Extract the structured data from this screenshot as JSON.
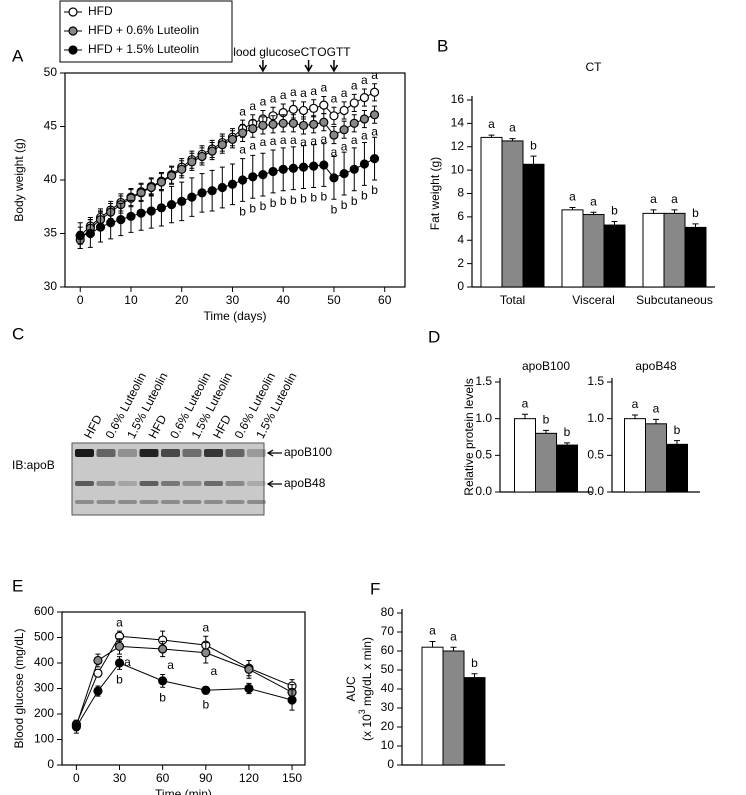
{
  "chart_data": [
    {
      "type": "line",
      "panel": "A",
      "ylabel": "Body weight (g)",
      "xlabel": "Time (days)",
      "xlim": [
        -3,
        64
      ],
      "xticks": [
        0,
        10,
        20,
        30,
        40,
        50,
        60
      ],
      "ylim": [
        30,
        50
      ],
      "yticks": [
        30,
        35,
        40,
        45,
        50
      ],
      "legend": "upper left",
      "events": [
        {
          "x": 36,
          "label": "Blood glucose"
        },
        {
          "x": 45,
          "label": "CT"
        },
        {
          "x": 50,
          "label": "OGTT"
        }
      ],
      "x": [
        0,
        2,
        4,
        6,
        8,
        10,
        12,
        14,
        16,
        18,
        20,
        22,
        24,
        26,
        28,
        30,
        32,
        34,
        36,
        38,
        40,
        42,
        44,
        46,
        48,
        50,
        52,
        54,
        56,
        58
      ],
      "series": [
        {
          "name": "HFD",
          "color": "#ffffff",
          "values": [
            34.8,
            35.7,
            36.5,
            37.2,
            37.9,
            38.4,
            38.9,
            39.4,
            39.9,
            40.5,
            41.2,
            41.9,
            42.4,
            42.9,
            43.5,
            44.0,
            44.8,
            45.3,
            45.7,
            46.0,
            46.3,
            46.6,
            46.5,
            46.7,
            47.0,
            46.0,
            46.5,
            47.2,
            47.7,
            48.2
          ],
          "errors": [
            0.8,
            0.8,
            0.8,
            0.8,
            0.8,
            0.8,
            0.8,
            0.8,
            0.8,
            0.8,
            0.8,
            0.8,
            0.8,
            0.8,
            0.8,
            0.8,
            0.8,
            0.8,
            0.8,
            0.8,
            0.8,
            0.8,
            0.8,
            0.8,
            0.8,
            0.8,
            0.8,
            0.8,
            0.8,
            0.8
          ],
          "letters": [
            null,
            null,
            null,
            null,
            null,
            null,
            null,
            null,
            null,
            null,
            null,
            null,
            null,
            null,
            null,
            null,
            "a",
            "a",
            "a",
            "a",
            "a",
            "a",
            "a",
            "a",
            "a",
            "a",
            "a",
            "a",
            "a",
            "a"
          ]
        },
        {
          "name": "HFD + 0.6% Luteolin",
          "color": "#888888",
          "values": [
            34.4,
            35.5,
            36.3,
            37.0,
            37.7,
            38.3,
            38.8,
            39.3,
            39.8,
            40.4,
            41.0,
            41.7,
            42.2,
            42.7,
            43.3,
            43.8,
            44.4,
            44.8,
            45.1,
            45.2,
            45.3,
            45.3,
            45.1,
            45.2,
            45.4,
            44.2,
            44.7,
            45.3,
            45.7,
            46.1
          ],
          "errors": [
            0.8,
            0.8,
            0.8,
            0.8,
            0.8,
            0.8,
            0.8,
            0.8,
            0.8,
            0.8,
            0.8,
            0.8,
            0.8,
            0.8,
            0.8,
            0.8,
            0.8,
            0.8,
            0.8,
            0.8,
            0.8,
            0.8,
            0.8,
            0.8,
            0.8,
            0.8,
            0.8,
            0.8,
            0.8,
            0.8
          ],
          "letters": [
            null,
            null,
            null,
            null,
            null,
            null,
            null,
            null,
            null,
            null,
            null,
            null,
            null,
            null,
            null,
            null,
            "a",
            "a",
            "a",
            "a",
            "a",
            "a",
            "a",
            "a",
            "a",
            "a",
            "a",
            "a",
            "a",
            "a"
          ]
        },
        {
          "name": "HFD + 1.5% Luteolin",
          "color": "#000000",
          "values": [
            34.8,
            35.0,
            35.6,
            36.0,
            36.3,
            36.6,
            36.9,
            37.1,
            37.4,
            37.7,
            38.0,
            38.4,
            38.8,
            39.0,
            39.3,
            39.6,
            40.0,
            40.3,
            40.5,
            40.8,
            41.0,
            41.1,
            41.2,
            41.3,
            41.4,
            40.2,
            40.6,
            41.0,
            41.5,
            42.0
          ],
          "errors": [
            1.2,
            1.3,
            1.4,
            1.5,
            1.5,
            1.5,
            1.6,
            1.6,
            1.7,
            1.7,
            1.8,
            1.8,
            1.8,
            1.9,
            1.9,
            1.9,
            2.0,
            2.0,
            2.0,
            2.0,
            2.0,
            2.0,
            2.0,
            2.0,
            2.0,
            2.0,
            2.0,
            2.0,
            2.0,
            2.0
          ],
          "letters": [
            null,
            null,
            null,
            null,
            null,
            null,
            null,
            null,
            null,
            null,
            null,
            null,
            null,
            null,
            null,
            null,
            "b",
            "b",
            "b",
            "b",
            "b",
            "b",
            "b",
            "b",
            "b",
            "b",
            "b",
            "b",
            "b",
            "b"
          ]
        }
      ]
    },
    {
      "type": "bar",
      "panel": "B",
      "title": "CT",
      "ylabel": "Fat weight (g)",
      "categories": [
        "Total",
        "Visceral",
        "Subcutaneous"
      ],
      "ylim": [
        0,
        16
      ],
      "yticks": [
        0,
        2,
        4,
        6,
        8,
        10,
        12,
        14,
        16
      ],
      "series": [
        {
          "color": "#ffffff",
          "values": [
            12.8,
            6.6,
            6.3
          ],
          "errors": [
            0.2,
            0.2,
            0.3
          ],
          "letters": [
            "a",
            "a",
            "a"
          ]
        },
        {
          "color": "#888888",
          "values": [
            12.5,
            6.2,
            6.3
          ],
          "errors": [
            0.2,
            0.2,
            0.3
          ],
          "letters": [
            "a",
            "a",
            "a"
          ]
        },
        {
          "color": "#000000",
          "values": [
            10.5,
            5.3,
            5.1
          ],
          "errors": [
            0.7,
            0.3,
            0.3
          ],
          "letters": [
            "b",
            "b",
            "b"
          ]
        }
      ]
    },
    {
      "type": "bar",
      "panel": "D",
      "title": "apoB100",
      "ylabel": "Relative protein levels",
      "ylim": [
        0,
        1.5
      ],
      "yticks": [
        {
          "value": 0,
          "label": "0.0"
        },
        {
          "value": 0.5,
          "label": "0.5"
        },
        {
          "value": 1,
          "label": "1.0"
        },
        {
          "value": 1.5,
          "label": "1.5"
        }
      ],
      "series": [
        {
          "color": "#ffffff",
          "values": [
            1.0
          ],
          "errors": [
            0.06
          ],
          "letters": [
            "a"
          ]
        },
        {
          "color": "#888888",
          "values": [
            0.8
          ],
          "errors": [
            0.04
          ],
          "letters": [
            "b"
          ]
        },
        {
          "color": "#000000",
          "values": [
            0.64
          ],
          "errors": [
            0.03
          ],
          "letters": [
            "b"
          ]
        }
      ]
    },
    {
      "type": "bar",
      "title": "apoB48",
      "ylim": [
        0,
        1.5
      ],
      "yticks": [
        {
          "value": 0,
          "label": "0.0"
        },
        {
          "value": 0.5,
          "label": "0.5"
        },
        {
          "value": 1,
          "label": "1.0"
        },
        {
          "value": 1.5,
          "label": "1.5"
        }
      ],
      "series": [
        {
          "color": "#ffffff",
          "values": [
            1.0
          ],
          "errors": [
            0.05
          ],
          "letters": [
            "a"
          ]
        },
        {
          "color": "#888888",
          "values": [
            0.93
          ],
          "errors": [
            0.06
          ],
          "letters": [
            "a"
          ]
        },
        {
          "color": "#000000",
          "values": [
            0.65
          ],
          "errors": [
            0.05
          ],
          "letters": [
            "b"
          ]
        }
      ]
    },
    {
      "type": "line",
      "panel": "E",
      "ylabel": "Blood glucose (mg/dL)",
      "xlabel": "Time (min)",
      "xlim": [
        -10,
        159
      ],
      "xticks": [
        0,
        30,
        60,
        90,
        120,
        150
      ],
      "ylim": [
        0,
        600
      ],
      "yticks": [
        0,
        100,
        200,
        300,
        400,
        500,
        600
      ],
      "x": [
        0,
        15,
        30,
        60,
        90,
        120,
        150
      ],
      "series": [
        {
          "color": "#ffffff",
          "values": [
            160,
            360,
            505,
            490,
            470,
            380,
            310
          ],
          "errors": [
            15,
            15,
            20,
            35,
            35,
            30,
            25
          ],
          "letters": [
            null,
            null,
            "a",
            null,
            "a",
            null,
            null
          ]
        },
        {
          "color": "#888888",
          "values": [
            155,
            410,
            465,
            455,
            440,
            375,
            285
          ],
          "errors": [
            20,
            25,
            30,
            30,
            40,
            35,
            30
          ],
          "letters": [
            null,
            null,
            "a",
            "a",
            "a",
            null,
            null
          ]
        },
        {
          "color": "#000000",
          "values": [
            150,
            290,
            400,
            330,
            293,
            300,
            255
          ],
          "errors": [
            25,
            20,
            25,
            25,
            15,
            20,
            40
          ],
          "letters": [
            null,
            null,
            "b",
            "b",
            "b",
            null,
            null
          ]
        }
      ]
    },
    {
      "type": "bar",
      "panel": "F",
      "ylabel": [
        "AUC",
        "(x 10",
        "3",
        " mg/dL x min)"
      ],
      "ylim": [
        0,
        80
      ],
      "yticks": [
        0,
        10,
        20,
        30,
        40,
        50,
        60,
        70,
        80
      ],
      "series": [
        {
          "color": "#ffffff",
          "values": [
            62
          ],
          "errors": [
            3
          ],
          "letters": [
            "a"
          ]
        },
        {
          "color": "#888888",
          "values": [
            60
          ],
          "errors": [
            2
          ],
          "letters": [
            "a"
          ]
        },
        {
          "color": "#000000",
          "values": [
            46
          ],
          "errors": [
            2
          ],
          "letters": [
            "b"
          ]
        }
      ]
    }
  ],
  "blot": {
    "panel": "C",
    "row_label": "IB:apoB",
    "lanes": [
      "HFD",
      "0.6% Luteolin",
      "1.5% Luteolin",
      "HFD",
      "0.6% Luteolin",
      "1.5% Luteolin",
      "HFD",
      "0.6% Luteolin",
      "1.5% Luteolin"
    ],
    "bands": [
      "apoB100",
      "apoB48"
    ]
  }
}
